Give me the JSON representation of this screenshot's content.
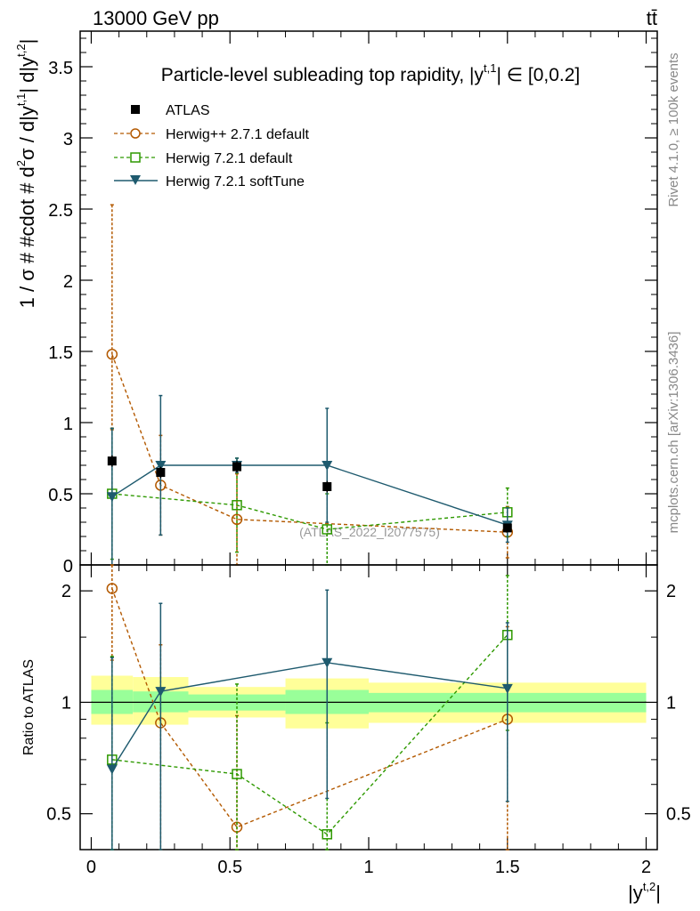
{
  "header": {
    "energy_label": "13000 GeV pp",
    "process_label": "tt̄"
  },
  "side_labels": {
    "rivet": "Rivet 4.1.0, ≥ 100k events",
    "mcplots": "mcplots.cern.ch [arXiv:1306.3436]"
  },
  "watermark": "(ATLAS_2022_I2077575)",
  "colors": {
    "atlas": "#000000",
    "herwigpp": "#b35900",
    "herwig721": "#2e9900",
    "softtune": "#1e5a6e",
    "band_yellow": "#ffff99",
    "band_green": "#99ff99"
  },
  "chart_data": [
    {
      "type": "scatter",
      "panel": "main",
      "title": "Particle-level subleading top rapidity, |y^{t,1}| ∈ [0,0.2]",
      "title_parts": {
        "prefix": "Particle-level subleading top rapidity, |y",
        "sup": "t,1",
        "suffix": "| ∈ [0,0.2]"
      },
      "xlabel": "",
      "ylabel": "1 / σ # #cdot # d²σ / d|y^{t,1}| d|y^{t,2}|",
      "ylabel_parts": {
        "a": "1 / σ # #cdot # d",
        "sup1": "2",
        "b": "σ / d|y",
        "sup2": "t,1",
        "c": "| d|y",
        "sup3": "t,2",
        "d": "|"
      },
      "xlim": [
        -0.04,
        2.04
      ],
      "ylim": [
        0,
        3.75
      ],
      "yticks": [
        0,
        0.5,
        1,
        1.5,
        2,
        2.5,
        3,
        3.5
      ],
      "ytick_labels": [
        "0",
        "0.5",
        "1",
        "1.5",
        "2",
        "2.5",
        "3",
        "3.5"
      ],
      "legend": [
        "ATLAS",
        "Herwig++ 2.7.1 default",
        "Herwig 7.2.1 default",
        "Herwig 7.2.1 softTune"
      ],
      "legend_position": "top-left",
      "series": [
        {
          "name": "ATLAS",
          "style": "filled-square",
          "x": [
            0.075,
            0.25,
            0.525,
            0.85,
            1.5
          ],
          "y": [
            0.73,
            0.65,
            0.69,
            0.55,
            0.26
          ],
          "err": [
            0.04,
            0.04,
            0.04,
            0.04,
            0.03
          ]
        },
        {
          "name": "Herwig++ 2.7.1 default",
          "style": "open-circle-dashed",
          "x": [
            0.075,
            0.25,
            0.525,
            0.85,
            1.5
          ],
          "y": [
            1.48,
            0.56,
            0.32,
            null,
            0.23
          ],
          "err_lo": [
            0.53,
            0.35,
            0.32,
            null,
            0.18
          ],
          "err_hi": [
            1.05,
            0.35,
            0.32,
            null,
            0.18
          ]
        },
        {
          "name": "Herwig 7.2.1 default",
          "style": "open-square-dashed",
          "x": [
            0.075,
            0.25,
            0.525,
            0.85,
            1.5
          ],
          "y": [
            0.5,
            null,
            0.42,
            0.25,
            0.37
          ],
          "err": [
            0.46,
            null,
            0.33,
            0.25,
            0.17
          ]
        },
        {
          "name": "Herwig 7.2.1 softTune",
          "style": "filled-triangle-solid",
          "x": [
            0.075,
            0.25,
            0.525,
            0.85,
            1.5
          ],
          "y": [
            0.48,
            0.7,
            0.7,
            0.7,
            0.28
          ],
          "err": [
            0.48,
            0.49,
            0.05,
            0.4,
            0.12
          ]
        }
      ]
    },
    {
      "type": "scatter",
      "panel": "ratio",
      "xlabel": "|y^{t,2}|",
      "xlabel_parts": {
        "base": "|y",
        "sup": "t,2",
        "close": "|"
      },
      "ylabel": "Ratio to ATLAS",
      "xlim": [
        -0.04,
        2.04
      ],
      "ylim": [
        0.4,
        2.35
      ],
      "log_y": true,
      "xticks": [
        0,
        0.5,
        1,
        1.5,
        2
      ],
      "xtick_labels": [
        "0",
        "0.5",
        "1",
        "1.5",
        "2"
      ],
      "yticks": [
        0.5,
        1,
        2
      ],
      "ytick_labels": [
        "0.5",
        "1",
        "2"
      ],
      "bins": [
        {
          "x_lo": 0.0,
          "x_hi": 0.15,
          "yellow": [
            0.87,
            1.18
          ],
          "green": [
            0.93,
            1.08
          ]
        },
        {
          "x_lo": 0.15,
          "x_hi": 0.35,
          "yellow": [
            0.87,
            1.17
          ],
          "green": [
            0.94,
            1.07
          ]
        },
        {
          "x_lo": 0.35,
          "x_hi": 0.7,
          "yellow": [
            0.91,
            1.1
          ],
          "green": [
            0.95,
            1.05
          ]
        },
        {
          "x_lo": 0.7,
          "x_hi": 1.0,
          "yellow": [
            0.85,
            1.16
          ],
          "green": [
            0.93,
            1.08
          ]
        },
        {
          "x_lo": 1.0,
          "x_hi": 2.0,
          "yellow": [
            0.88,
            1.13
          ],
          "green": [
            0.94,
            1.06
          ]
        }
      ],
      "series": [
        {
          "name": "Herwig++ 2.7.1 default",
          "style": "open-circle-dashed",
          "x": [
            0.075,
            0.25,
            0.525,
            1.5
          ],
          "y": [
            2.03,
            0.88,
            0.46,
            0.9
          ],
          "err_lo": [
            0.73,
            0.55,
            0.46,
            0.7
          ],
          "err_hi": [
            1.44,
            0.55,
            0.46,
            0.7
          ]
        },
        {
          "name": "Herwig 7.2.1 default",
          "style": "open-square-dashed",
          "x": [
            0.075,
            0.525,
            0.85,
            1.5
          ],
          "y": [
            0.7,
            0.64,
            0.44,
            1.52
          ],
          "err": [
            0.63,
            0.48,
            0.44,
            0.68
          ]
        },
        {
          "name": "Herwig 7.2.1 softTune",
          "style": "filled-triangle-solid",
          "x": [
            0.075,
            0.25,
            0.85,
            1.5
          ],
          "y": [
            0.66,
            1.07,
            1.28,
            1.09
          ],
          "err": [
            0.66,
            0.78,
            0.73,
            0.55
          ]
        }
      ]
    }
  ]
}
